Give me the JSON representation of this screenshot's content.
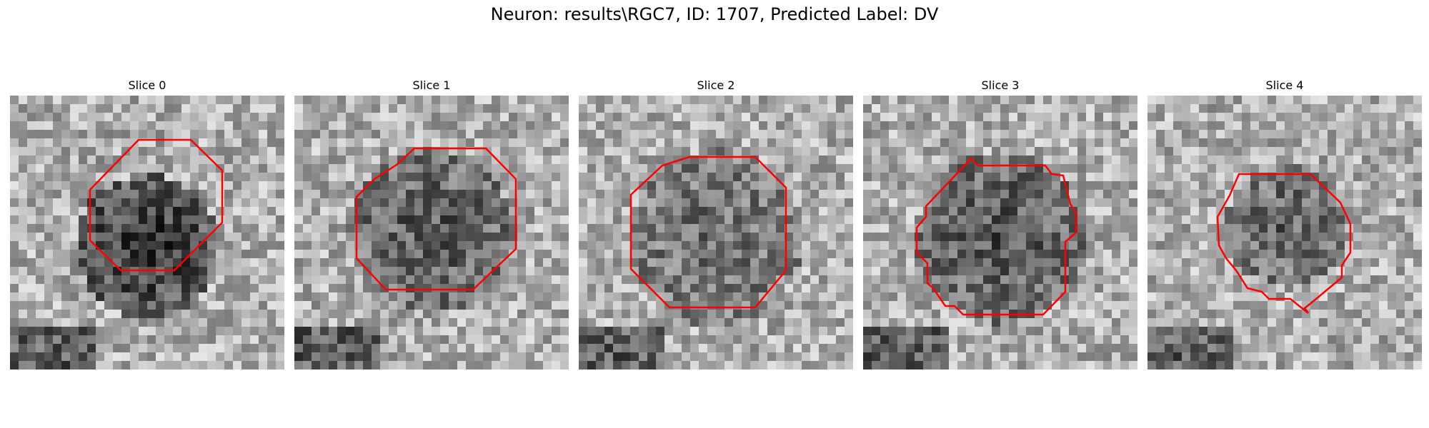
{
  "figure": {
    "title": "Neuron: results\\RGC7, ID: 1707, Predicted Label: DV"
  },
  "panels": [
    {
      "title": "Slice 0"
    },
    {
      "title": "Slice 1"
    },
    {
      "title": "Slice 2"
    },
    {
      "title": "Slice 3"
    },
    {
      "title": "Slice 4"
    }
  ],
  "colors": {
    "contour": "#ff0000"
  }
}
